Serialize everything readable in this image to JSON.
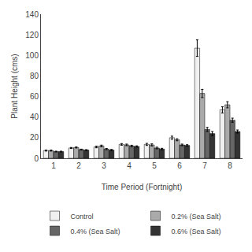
{
  "chart_data": {
    "type": "bar",
    "xlabel": "Time Period (Fortnight)",
    "ylabel": "Plant Height (cms)",
    "categories": [
      "1",
      "2",
      "3",
      "4",
      "5",
      "6",
      "7",
      "8"
    ],
    "series": [
      {
        "name": "Control",
        "color": "#f0f0f0",
        "values": [
          7.5,
          10,
          11,
          13.5,
          13.5,
          20,
          107,
          47
        ],
        "errors": [
          0.5,
          0.5,
          0.8,
          0.8,
          1.0,
          1.5,
          8,
          3
        ]
      },
      {
        "name": "0.2% (Sea Salt)",
        "color": "#aaaaaa",
        "values": [
          7.5,
          10.5,
          12,
          13,
          13,
          18,
          63,
          52
        ],
        "errors": [
          0.5,
          0.5,
          0.8,
          0.8,
          1.0,
          1.0,
          4,
          3
        ]
      },
      {
        "name": "0.4% (Sea Salt)",
        "color": "#666666",
        "values": [
          6.5,
          8.5,
          9,
          12,
          10,
          13,
          28,
          37
        ],
        "errors": [
          0.4,
          0.4,
          0.6,
          0.7,
          0.8,
          0.8,
          2,
          2
        ]
      },
      {
        "name": "0.6% (Sea Salt)",
        "color": "#333333",
        "values": [
          6.5,
          8,
          8,
          11.5,
          9,
          12.5,
          24,
          26
        ],
        "errors": [
          0.4,
          0.4,
          0.6,
          0.6,
          0.7,
          0.7,
          2,
          1.5
        ]
      }
    ],
    "ylim": [
      0,
      140
    ],
    "yticks": [
      0,
      20,
      40,
      60,
      80,
      100,
      120,
      140
    ],
    "grid": false,
    "legend": "bottom"
  }
}
